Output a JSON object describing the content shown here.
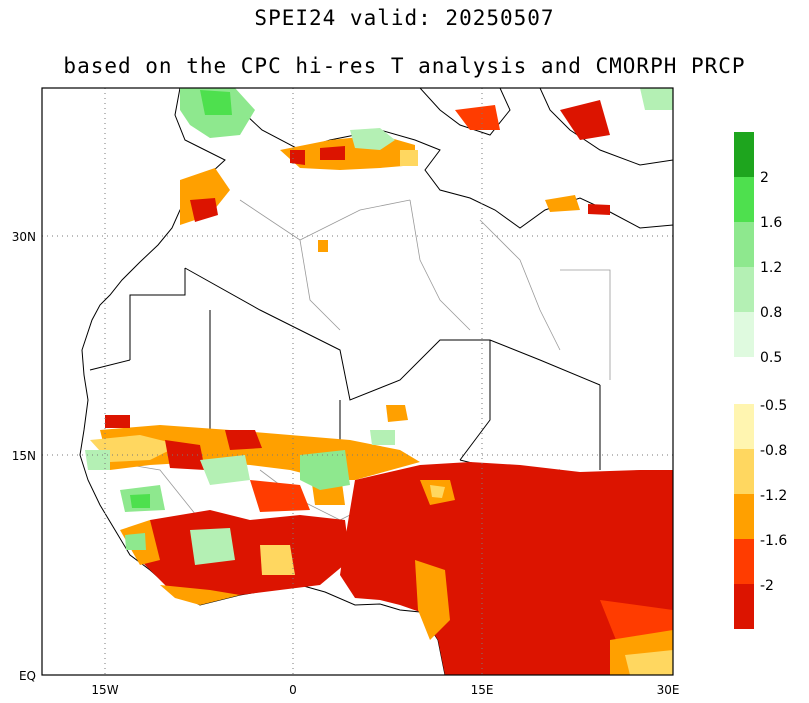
{
  "title": "SPEI24  valid: 20250507",
  "subtitle": "based on the CPC hi-res T analysis and CMORPH PRCP",
  "map": {
    "lat_labels": [
      "30N",
      "15N",
      "EQ"
    ],
    "lon_labels": [
      "15W",
      "0",
      "15E",
      "30E"
    ]
  },
  "colorbar_wet": {
    "colors": [
      "#1ea51e",
      "#4ee04e",
      "#8ee88e",
      "#b4f0b4",
      "#dffadf"
    ],
    "labels": [
      "2",
      "1.6",
      "1.2",
      "0.8",
      "0.5"
    ]
  },
  "colorbar_dry": {
    "colors": [
      "#fff5b0",
      "#ffd760",
      "#ffa000",
      "#ff3c00",
      "#dc1400"
    ],
    "labels": [
      "-0.5",
      "-0.8",
      "-1.2",
      "-1.6",
      "-2"
    ]
  }
}
